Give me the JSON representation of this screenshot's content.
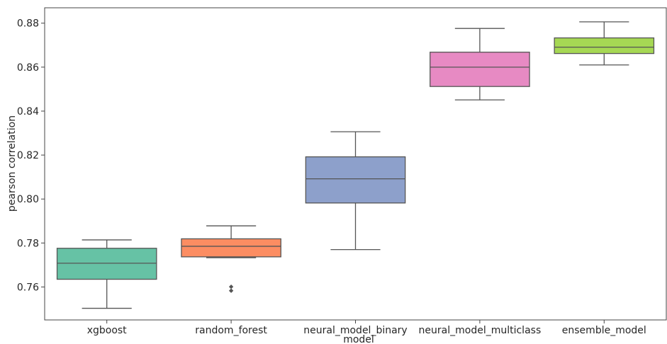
{
  "chart_data": {
    "type": "box",
    "xlabel": "model",
    "ylabel": "pearson correlation",
    "ylim": [
      0.745,
      0.887
    ],
    "yticks": [
      "0.76",
      "0.78",
      "0.80",
      "0.82",
      "0.84",
      "0.86",
      "0.88"
    ],
    "grid": false,
    "categories": [
      "xgboost",
      "random_forest",
      "neural_model_binary",
      "neural_model_multiclass",
      "ensemble_model"
    ],
    "series": [
      {
        "category": "xgboost",
        "color": "#66c2a5",
        "whisker_low": 0.7503,
        "q1": 0.7635,
        "median": 0.7708,
        "q3": 0.7776,
        "whisker_high": 0.7814,
        "outliers": []
      },
      {
        "category": "random_forest",
        "color": "#fc8d62",
        "whisker_low": 0.7733,
        "q1": 0.7737,
        "median": 0.7785,
        "q3": 0.7819,
        "whisker_high": 0.7878,
        "outliers": [
          0.7583,
          0.7601
        ]
      },
      {
        "category": "neural_model_binary",
        "color": "#8da0cb",
        "whisker_low": 0.777,
        "q1": 0.7982,
        "median": 0.8092,
        "q3": 0.8192,
        "whisker_high": 0.8306,
        "outliers": []
      },
      {
        "category": "neural_model_multiclass",
        "color": "#e78ac3",
        "whisker_low": 0.8451,
        "q1": 0.8512,
        "median": 0.86,
        "q3": 0.8668,
        "whisker_high": 0.8776,
        "outliers": []
      },
      {
        "category": "ensemble_model",
        "color": "#a6d854",
        "whisker_low": 0.861,
        "q1": 0.8662,
        "median": 0.8691,
        "q3": 0.8733,
        "whisker_high": 0.8806,
        "outliers": []
      }
    ]
  }
}
